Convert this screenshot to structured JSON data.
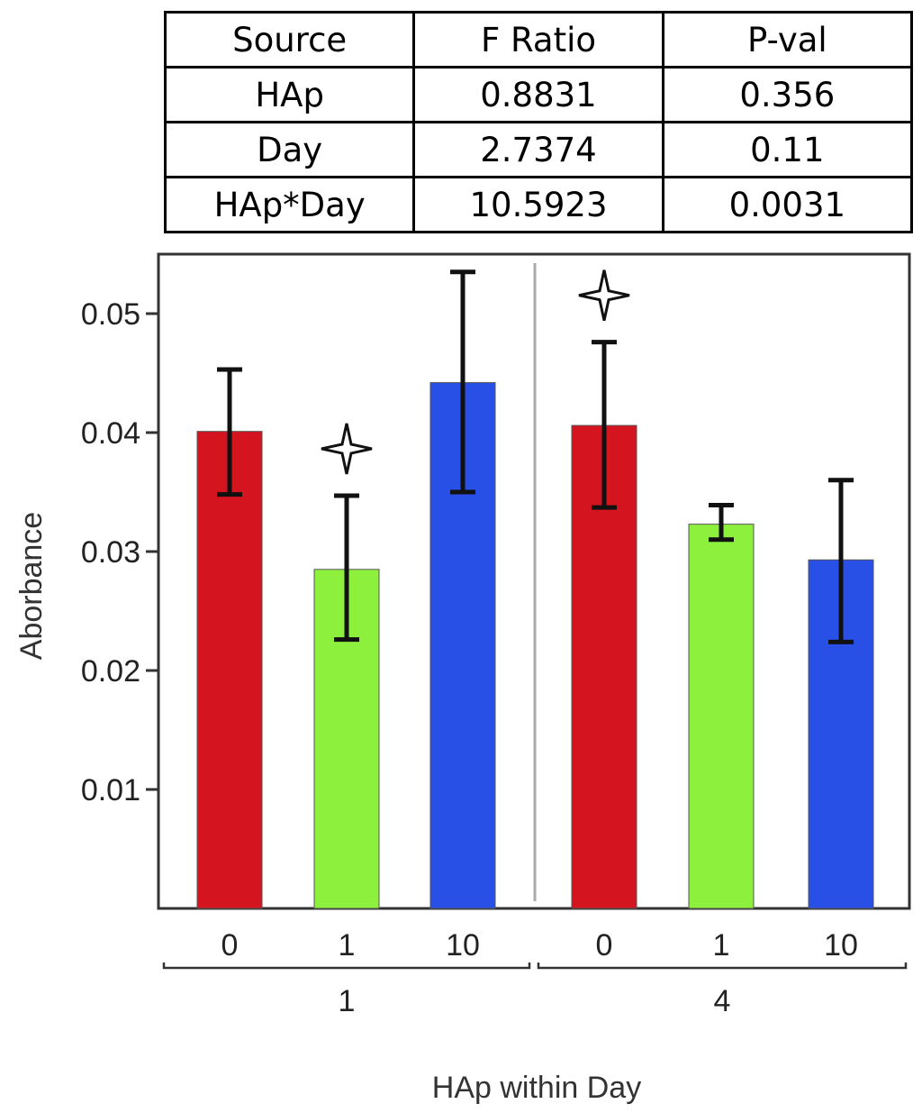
{
  "table": {
    "headers": [
      "Source",
      "F Ratio",
      "P-val"
    ],
    "rows": [
      [
        "HAp",
        "0.8831",
        "0.356"
      ],
      [
        "Day",
        "2.7374",
        "0.11"
      ],
      [
        "HAp*Day",
        "10.5923",
        "0.0031"
      ]
    ]
  },
  "chart_data": {
    "type": "bar",
    "title": "",
    "xlabel": "HAp within Day",
    "ylabel": "Aborbance",
    "ylim": [
      0,
      0.055
    ],
    "yticks": [
      0.01,
      0.02,
      0.03,
      0.04,
      0.05
    ],
    "ytick_labels": [
      "0.01",
      "0.02",
      "0.03",
      "0.04",
      "0.05"
    ],
    "groups": [
      {
        "label": "1",
        "bars": [
          {
            "category": "0",
            "value": 0.0401,
            "err_low": 0.0348,
            "err_high": 0.0453,
            "color": "#d4141e",
            "marker": false
          },
          {
            "category": "1",
            "value": 0.0285,
            "err_low": 0.0226,
            "err_high": 0.0347,
            "color": "#8cf03c",
            "marker": true
          },
          {
            "category": "10",
            "value": 0.0442,
            "err_low": 0.035,
            "err_high": 0.0535,
            "color": "#2850e6",
            "marker": false
          }
        ]
      },
      {
        "label": "4",
        "bars": [
          {
            "category": "0",
            "value": 0.0406,
            "err_low": 0.0337,
            "err_high": 0.0476,
            "color": "#d4141e",
            "marker": true
          },
          {
            "category": "1",
            "value": 0.0323,
            "err_low": 0.031,
            "err_high": 0.0339,
            "color": "#8cf03c",
            "marker": false
          },
          {
            "category": "10",
            "value": 0.0293,
            "err_low": 0.0224,
            "err_high": 0.036,
            "color": "#2850e6",
            "marker": false
          }
        ]
      }
    ],
    "marker_symbol": "four-pointed-star"
  }
}
